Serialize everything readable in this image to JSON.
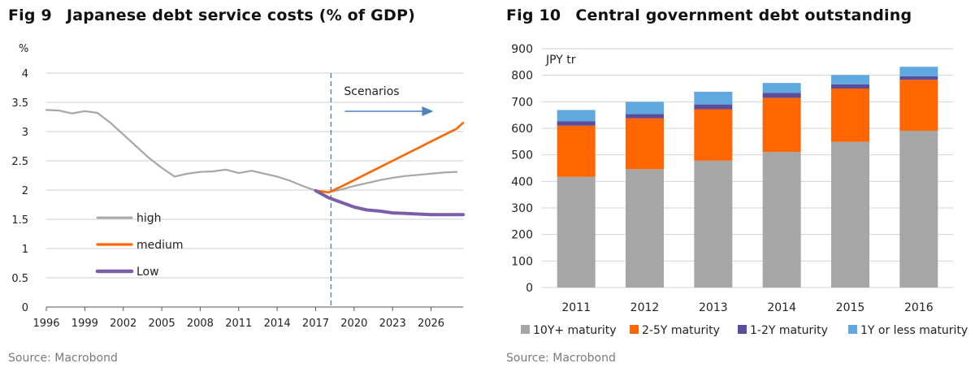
{
  "left": {
    "title": "Japanese debt service costs (% of GDP)",
    "fig_label": "Fig 9",
    "source": "Source: Macrobond",
    "scenarios_label": "Scenarios",
    "colors": {
      "high": "#a6a6a6",
      "medium": "#ff6600",
      "low": "#7b5ea7",
      "divider": "#4a78b0",
      "arrow": "#4f81bd"
    }
  },
  "right": {
    "title": "Central government debt outstanding",
    "fig_label": "Fig 10",
    "source": "Source: Macrobond",
    "colors": {
      "10y": "#a6a6a6",
      "2_5y": "#ff6600",
      "1_2y": "#5a4d9b",
      "1y": "#5fa8e0"
    }
  },
  "chart_data": [
    {
      "type": "line",
      "title": "Japanese debt service costs (% of GDP)",
      "ylabel": "%",
      "ylim": [
        0,
        4
      ],
      "xlim": [
        1996,
        2028.5
      ],
      "y_ticks": [
        "0",
        "0.5",
        "1",
        "1.5",
        "2",
        "2.5",
        "3",
        "3.5",
        "4"
      ],
      "x_ticks": [
        "1996",
        "1999",
        "2002",
        "2005",
        "2008",
        "2011",
        "2014",
        "2017",
        "2020",
        "2023",
        "2026"
      ],
      "grid": "horizontal",
      "scenario_start": 2018.2,
      "series": [
        {
          "name": "high",
          "points": [
            [
              1996,
              3.37
            ],
            [
              1997,
              3.36
            ],
            [
              1998,
              3.31
            ],
            [
              1999,
              3.35
            ],
            [
              2000,
              3.32
            ],
            [
              2001,
              3.15
            ],
            [
              2002,
              2.95
            ],
            [
              2003,
              2.75
            ],
            [
              2004,
              2.55
            ],
            [
              2005,
              2.38
            ],
            [
              2006,
              2.23
            ],
            [
              2007,
              2.28
            ],
            [
              2008,
              2.31
            ],
            [
              2009,
              2.32
            ],
            [
              2010,
              2.35
            ],
            [
              2011,
              2.29
            ],
            [
              2012,
              2.33
            ],
            [
              2013,
              2.28
            ],
            [
              2014,
              2.23
            ],
            [
              2015,
              2.16
            ],
            [
              2016,
              2.07
            ],
            [
              2017,
              1.99
            ],
            [
              2018,
              1.96
            ],
            [
              2019,
              2.01
            ],
            [
              2020,
              2.07
            ],
            [
              2021,
              2.12
            ],
            [
              2022,
              2.17
            ],
            [
              2023,
              2.21
            ],
            [
              2024,
              2.24
            ],
            [
              2025,
              2.26
            ],
            [
              2026,
              2.28
            ],
            [
              2027,
              2.3
            ],
            [
              2028,
              2.31
            ]
          ]
        },
        {
          "name": "medium",
          "points": [
            [
              2017,
              1.99
            ],
            [
              2018,
              1.96
            ],
            [
              2019,
              2.06
            ],
            [
              2020,
              2.17
            ],
            [
              2021,
              2.28
            ],
            [
              2022,
              2.39
            ],
            [
              2023,
              2.5
            ],
            [
              2024,
              2.61
            ],
            [
              2025,
              2.72
            ],
            [
              2026,
              2.83
            ],
            [
              2027,
              2.94
            ],
            [
              2028,
              3.05
            ],
            [
              2028.5,
              3.15
            ]
          ]
        },
        {
          "name": "Low",
          "points": [
            [
              2017,
              1.99
            ],
            [
              2018,
              1.87
            ],
            [
              2019,
              1.79
            ],
            [
              2020,
              1.71
            ],
            [
              2021,
              1.66
            ],
            [
              2022,
              1.64
            ],
            [
              2023,
              1.61
            ],
            [
              2024,
              1.6
            ],
            [
              2025,
              1.59
            ],
            [
              2026,
              1.58
            ],
            [
              2027,
              1.58
            ],
            [
              2028.5,
              1.58
            ]
          ]
        }
      ]
    },
    {
      "type": "bar",
      "stacked": true,
      "title": "Central government debt outstanding",
      "ylabel": "JPY tr",
      "ylim": [
        0,
        900
      ],
      "y_ticks": [
        "0",
        "100",
        "200",
        "300",
        "400",
        "500",
        "600",
        "700",
        "800",
        "900"
      ],
      "categories": [
        "2011",
        "2012",
        "2013",
        "2014",
        "2015",
        "2016"
      ],
      "legend_position": "bottom",
      "series": [
        {
          "name": "10Y+ maturity",
          "values": [
            417,
            446,
            478,
            511,
            549,
            591
          ]
        },
        {
          "name": "2-5Y maturity",
          "values": [
            193,
            192,
            194,
            204,
            201,
            192
          ]
        },
        {
          "name": "1-2Y maturity",
          "values": [
            17,
            16,
            18,
            19,
            16,
            13
          ]
        },
        {
          "name": "1Y or less maturity",
          "values": [
            42,
            46,
            48,
            37,
            35,
            36
          ]
        }
      ]
    }
  ]
}
